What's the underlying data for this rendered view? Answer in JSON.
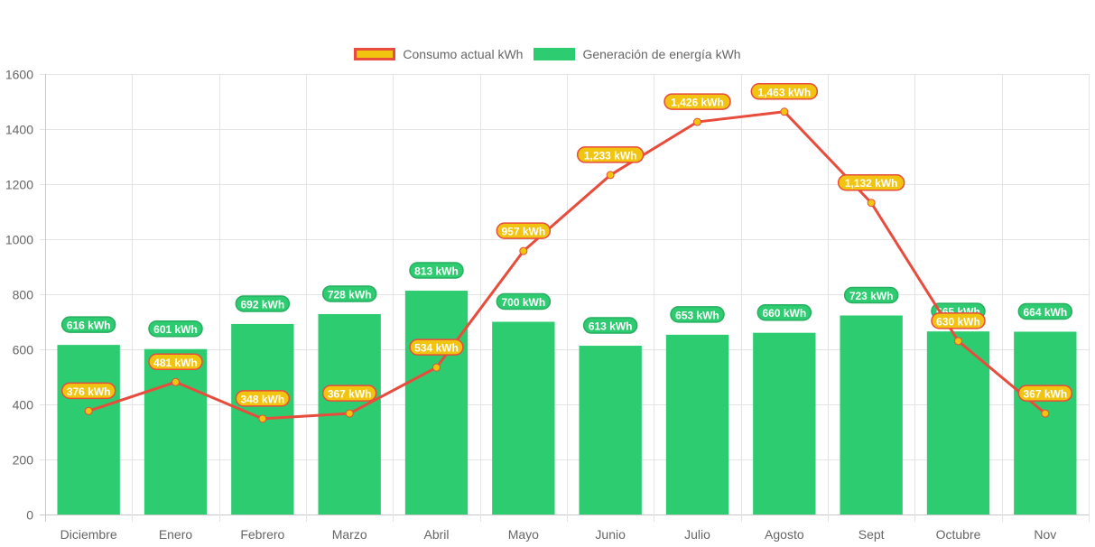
{
  "chart_data": {
    "type": "bar",
    "title": "",
    "xlabel": "",
    "ylabel": "",
    "ylim": [
      0,
      1600
    ],
    "yticks": [
      0,
      200,
      400,
      600,
      800,
      1000,
      1200,
      1400,
      1600
    ],
    "grid": true,
    "legend_position": "top-center",
    "categories": [
      "Diciembre",
      "Enero",
      "Febrero",
      "Marzo",
      "Abril",
      "Mayo",
      "Junio",
      "Julio",
      "Agosto",
      "Sept",
      "Octubre",
      "Nov"
    ],
    "series": [
      {
        "name": "Consumo actual kWh",
        "type": "line",
        "color": "#e74c3c",
        "fill": "#f1c40f",
        "values": [
          376,
          481,
          348,
          367,
          534,
          957,
          1233,
          1426,
          1463,
          1132,
          630,
          367
        ],
        "labels": [
          "376 kWh",
          "481 kWh",
          "348 kWh",
          "367 kWh",
          "534 kWh",
          "957 kWh",
          "1,233 kWh",
          "1,426 kWh",
          "1,463 kWh",
          "1,132 kWh",
          "630 kWh",
          "367 kWh"
        ]
      },
      {
        "name": "Generación de energía kWh",
        "type": "bar",
        "color": "#2ecc71",
        "values": [
          616,
          601,
          692,
          728,
          813,
          700,
          613,
          653,
          660,
          723,
          665,
          664
        ],
        "labels": [
          "616 kWh",
          "601 kWh",
          "692 kWh",
          "728 kWh",
          "813 kWh",
          "700 kWh",
          "613 kWh",
          "653 kWh",
          "660 kWh",
          "723 kWh",
          "665 kWh",
          "664 kWh"
        ]
      }
    ]
  }
}
